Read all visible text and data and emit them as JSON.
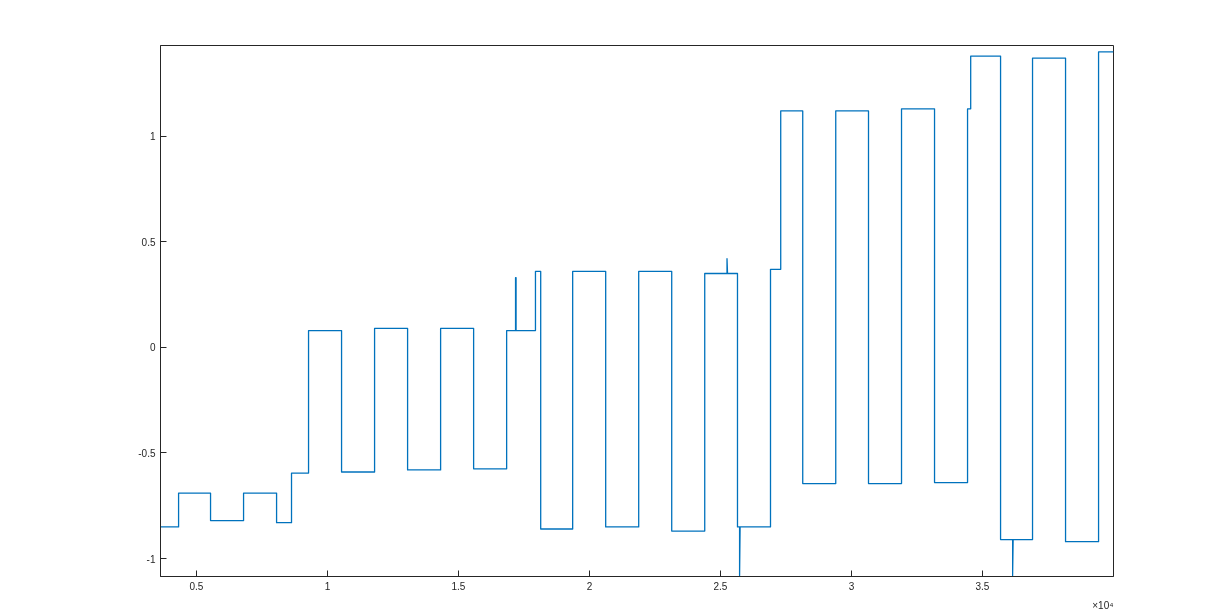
{
  "chart_data": {
    "type": "line",
    "x": [
      0.363,
      0.432,
      0.432,
      0.554,
      0.554,
      0.68,
      0.68,
      0.806,
      0.806,
      0.863,
      0.863,
      0.928,
      0.928,
      1.054,
      1.054,
      1.18,
      1.18,
      1.306,
      1.306,
      1.432,
      1.432,
      1.558,
      1.558,
      1.684,
      1.684,
      1.718,
      1.718,
      1.72,
      1.72,
      1.794,
      1.794,
      1.814,
      1.814,
      1.936,
      1.936,
      2.062,
      2.062,
      2.188,
      2.188,
      2.314,
      2.314,
      2.44,
      2.44,
      2.525,
      2.525,
      2.527,
      2.565,
      2.565,
      2.573,
      2.573,
      2.575,
      2.691,
      2.691,
      2.73,
      2.73,
      2.814,
      2.814,
      2.94,
      2.94,
      3.065,
      3.065,
      3.191,
      3.191,
      3.317,
      3.317,
      3.443,
      3.443,
      3.455,
      3.455,
      3.569,
      3.569,
      3.615,
      3.615,
      3.617,
      3.691,
      3.691,
      3.817,
      3.817,
      3.943,
      3.943,
      4.0
    ],
    "series": [
      {
        "color": "#0072bd",
        "values": [
          -0.85,
          -0.85,
          -0.69,
          -0.69,
          -0.82,
          -0.82,
          -0.69,
          -0.69,
          -0.83,
          -0.83,
          -0.595,
          -0.595,
          0.08,
          0.08,
          -0.59,
          -0.59,
          0.09,
          0.09,
          -0.58,
          -0.58,
          0.09,
          0.09,
          -0.575,
          -0.575,
          0.08,
          0.08,
          0.33,
          0.33,
          0.08,
          0.08,
          0.36,
          0.36,
          -0.86,
          -0.86,
          0.36,
          0.36,
          -0.85,
          -0.85,
          0.36,
          0.36,
          -0.87,
          -0.87,
          0.35,
          0.35,
          0.42,
          0.35,
          0.35,
          -0.85,
          -0.85,
          -1.08,
          -0.85,
          -0.85,
          0.37,
          0.37,
          1.12,
          1.12,
          -0.645,
          -0.645,
          1.12,
          1.12,
          -0.645,
          -0.645,
          1.13,
          1.13,
          -0.64,
          -0.64,
          1.13,
          1.13,
          1.38,
          1.38,
          -0.91,
          -0.91,
          -1.08,
          -0.91,
          -0.91,
          1.37,
          1.37,
          -0.92,
          -0.92,
          1.4,
          1.4
        ]
      }
    ],
    "xlim": [
      0.363,
      4.0
    ],
    "ylim": [
      -1.085,
      1.43
    ],
    "xticks": [
      0.5,
      1,
      1.5,
      2,
      2.5,
      3,
      3.5
    ],
    "yticks": [
      -1,
      -0.5,
      0,
      0.5,
      1
    ],
    "annotations": [
      "×10⁴"
    ],
    "grid": false,
    "marker": "none",
    "line_style": "solid"
  }
}
